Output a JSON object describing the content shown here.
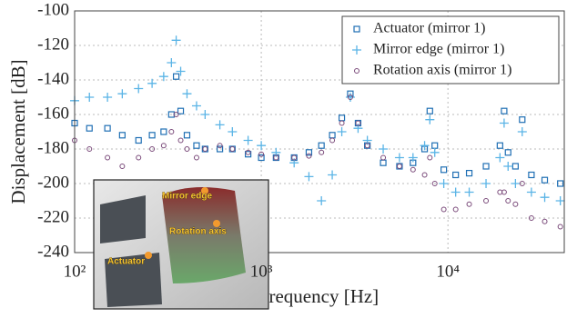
{
  "chart_data": {
    "type": "scatter",
    "xlabel": "Frequency [Hz]",
    "ylabel": "Displacement [dB]",
    "xscale": "log",
    "xlim": [
      100,
      42000
    ],
    "ylim": [
      -240,
      -100
    ],
    "xticks": [
      {
        "value": 100,
        "label": "10²"
      },
      {
        "value": 1000,
        "label": "10³"
      },
      {
        "value": 10000,
        "label": "10⁴"
      }
    ],
    "yticks": [
      -240,
      -220,
      -200,
      -180,
      -160,
      -140,
      -120,
      -100
    ],
    "grid": true,
    "legend": "upper right",
    "x": [
      100,
      120,
      150,
      180,
      220,
      260,
      300,
      330,
      350,
      370,
      400,
      450,
      500,
      600,
      700,
      850,
      1000,
      1200,
      1500,
      1800,
      2100,
      2400,
      2700,
      3000,
      3300,
      3700,
      4500,
      5500,
      6500,
      7500,
      8000,
      8500,
      9500,
      11000,
      13000,
      16000,
      19000,
      20000,
      21000,
      23000,
      25000,
      28000,
      33000,
      40000
    ],
    "series": [
      {
        "name": "Actuator (mirror 1)",
        "color": "#1f6fb4",
        "marker": "square",
        "values": [
          -165,
          -168,
          -168,
          -172,
          -175,
          -172,
          -170,
          -160,
          -138,
          -158,
          -172,
          -178,
          -180,
          -180,
          -180,
          -183,
          -185,
          -185,
          -185,
          -182,
          -178,
          -172,
          -162,
          -148,
          -165,
          -178,
          -188,
          -190,
          -188,
          -180,
          -158,
          -178,
          -192,
          -195,
          -194,
          -190,
          -178,
          -158,
          -182,
          -190,
          -163,
          -195,
          -198,
          -200
        ]
      },
      {
        "name": "Mirror edge (mirror 1)",
        "color": "#5ab4e6",
        "marker": "plus",
        "values": [
          -152,
          -150,
          -150,
          -148,
          -145,
          -142,
          -138,
          -130,
          -117,
          -135,
          -148,
          -155,
          -160,
          -166,
          -170,
          -175,
          -178,
          -182,
          -188,
          -196,
          -210,
          -195,
          -170,
          -150,
          -168,
          -175,
          -180,
          -185,
          -185,
          -178,
          -163,
          -182,
          -200,
          -205,
          -205,
          -200,
          -185,
          -165,
          -190,
          -200,
          -170,
          -205,
          -208,
          -210
        ]
      },
      {
        "name": "Rotation axis (mirror 1)",
        "color": "#7a4a7a",
        "marker": "circle",
        "values": [
          -175,
          -180,
          -185,
          -190,
          -185,
          -180,
          -178,
          -170,
          -160,
          -175,
          -180,
          -185,
          -180,
          -178,
          -180,
          -182,
          -183,
          -185,
          -185,
          -184,
          -182,
          -175,
          -165,
          -150,
          -165,
          -178,
          -185,
          -190,
          -192,
          -195,
          -185,
          -200,
          -215,
          -215,
          -212,
          -210,
          -205,
          -205,
          -210,
          -212,
          -200,
          -220,
          -222,
          -225
        ]
      }
    ]
  },
  "inset_labels": [
    "Mirror edge",
    "Rotation axis",
    "Actuator"
  ]
}
